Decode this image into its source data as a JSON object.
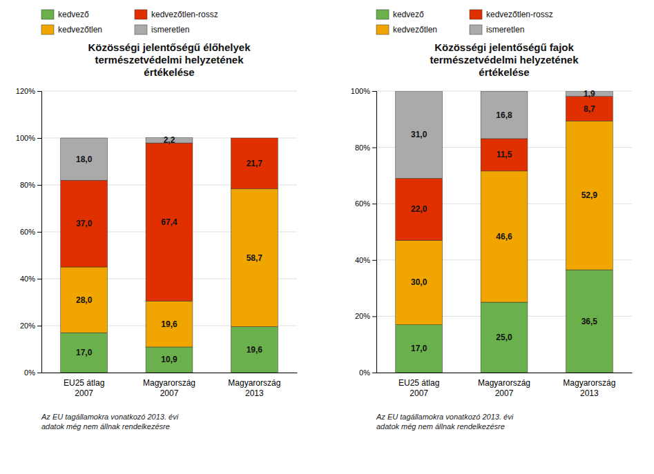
{
  "chart_data": [
    {
      "type": "bar",
      "stacked": true,
      "title": "Közösségi jelentőségű élőhelyek\ntermészetvédelmi helyzetének\nértékelése",
      "categories": [
        "EU25 átlag\n2007",
        "Magyarország\n2007",
        "Magyarország\n2013"
      ],
      "series": [
        {
          "name": "kedvező",
          "color": "#6ab04c",
          "values": [
            17.0,
            10.9,
            19.6
          ],
          "value_labels": [
            "17,0",
            "10,9",
            "19,6"
          ]
        },
        {
          "name": "kedvezőtlen",
          "color": "#f0a500",
          "values": [
            28.0,
            19.6,
            58.7
          ],
          "value_labels": [
            "28,0",
            "19,6",
            "58,7"
          ]
        },
        {
          "name": "kedvezőtlen-rossz",
          "color": "#e03000",
          "values": [
            37.0,
            67.4,
            21.7
          ],
          "value_labels": [
            "37,0",
            "67,4",
            "21,7"
          ]
        },
        {
          "name": "ismeretlen",
          "color": "#aaaaaa",
          "values": [
            18.0,
            2.2,
            0.0
          ],
          "value_labels": [
            "18,0",
            "2,2",
            null
          ]
        }
      ],
      "ylim": [
        0,
        120
      ],
      "yticks": [
        {
          "value": 0,
          "label": "0%"
        },
        {
          "value": 20,
          "label": "20%"
        },
        {
          "value": 40,
          "label": "40%"
        },
        {
          "value": 60,
          "label": "60%"
        },
        {
          "value": 80,
          "label": "80%"
        },
        {
          "value": 100,
          "label": "100%"
        },
        {
          "value": 120,
          "label": "120%"
        }
      ],
      "grid": true,
      "legend": "top",
      "data_labels": true,
      "annotations": [
        "Az EU tagállamokra vonatkozó 2013. évi\nadatok még nem állnak rendelkezésre"
      ]
    },
    {
      "type": "bar",
      "stacked": true,
      "title": "Közösségi jelentőségű fajok\ntermészetvédelmi helyzetének\nértékelése",
      "categories": [
        "EU25 átlag\n2007",
        "Magyarország\n2007",
        "Magyarország\n2013"
      ],
      "series": [
        {
          "name": "kedvező",
          "color": "#6ab04c",
          "values": [
            17.0,
            25.0,
            36.5
          ],
          "value_labels": [
            "17,0",
            "25,0",
            "36,5"
          ]
        },
        {
          "name": "kedvezőtlen",
          "color": "#f0a500",
          "values": [
            30.0,
            46.6,
            52.9
          ],
          "value_labels": [
            "30,0",
            "46,6",
            "52,9"
          ]
        },
        {
          "name": "kedvezőtlen-rossz",
          "color": "#e03000",
          "values": [
            22.0,
            11.5,
            8.7
          ],
          "value_labels": [
            "22,0",
            "11,5",
            "8,7"
          ]
        },
        {
          "name": "ismeretlen",
          "color": "#aaaaaa",
          "values": [
            31.0,
            16.8,
            1.9
          ],
          "value_labels": [
            "31,0",
            "16,8",
            "1,9"
          ]
        }
      ],
      "ylim": [
        0,
        100
      ],
      "yticks": [
        {
          "value": 0,
          "label": "0%"
        },
        {
          "value": 20,
          "label": "20%"
        },
        {
          "value": 40,
          "label": "40%"
        },
        {
          "value": 60,
          "label": "60%"
        },
        {
          "value": 80,
          "label": "80%"
        },
        {
          "value": 100,
          "label": "100%"
        }
      ],
      "grid": true,
      "legend": "top",
      "data_labels": true,
      "annotations": [
        "Az EU tagállamokra vonatkozó 2013. évi\nadatok még nem állnak rendelkezésre"
      ]
    }
  ]
}
